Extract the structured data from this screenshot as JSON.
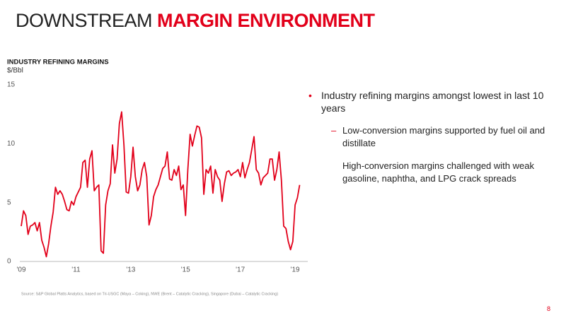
{
  "slide_title": {
    "light": "DOWNSTREAM",
    "bold": "MARGIN ENVIRONMENT"
  },
  "chart_data": {
    "type": "line",
    "title": "INDUSTRY REFINING MARGINS",
    "y_label": "$/Bbl",
    "categories": [
      "'09",
      null,
      null,
      null,
      null,
      null,
      null,
      null,
      null,
      null,
      null,
      null,
      null,
      null,
      null,
      null,
      null,
      null,
      null,
      null,
      null,
      null,
      null,
      null,
      "'11",
      null,
      null,
      null,
      null,
      null,
      null,
      null,
      null,
      null,
      null,
      null,
      null,
      null,
      null,
      null,
      null,
      null,
      null,
      null,
      null,
      null,
      null,
      null,
      "'13",
      null,
      null,
      null,
      null,
      null,
      null,
      null,
      null,
      null,
      null,
      null,
      null,
      null,
      null,
      null,
      null,
      null,
      null,
      null,
      null,
      null,
      null,
      null,
      "'15",
      null,
      null,
      null,
      null,
      null,
      null,
      null,
      null,
      null,
      null,
      null,
      null,
      null,
      null,
      null,
      null,
      null,
      null,
      null,
      null,
      null,
      null,
      null,
      "'17",
      null,
      null,
      null,
      null,
      null,
      null,
      null,
      null,
      null,
      null,
      null,
      null,
      null,
      null,
      null,
      null,
      null,
      null,
      null,
      null,
      null,
      null,
      null,
      "'19",
      null,
      null
    ],
    "series": [
      {
        "name": "Industry refining margins",
        "color": "#e2001a",
        "values": [
          3.0,
          4.3,
          3.9,
          2.3,
          3.0,
          3.1,
          3.3,
          2.6,
          3.3,
          1.8,
          1.2,
          0.4,
          1.5,
          3.0,
          4.2,
          6.3,
          5.7,
          6.0,
          5.7,
          5.1,
          4.4,
          4.3,
          5.1,
          4.8,
          5.5,
          5.9,
          6.3,
          8.4,
          8.6,
          6.3,
          8.7,
          9.4,
          6.0,
          6.3,
          6.5,
          0.9,
          0.7,
          4.8,
          6.0,
          6.6,
          9.9,
          7.5,
          8.7,
          11.7,
          12.7,
          9.9,
          5.9,
          5.8,
          7.2,
          9.7,
          7.2,
          6.0,
          6.5,
          7.8,
          8.4,
          7.2,
          3.1,
          3.9,
          5.5,
          6.1,
          6.5,
          7.2,
          7.9,
          8.1,
          9.3,
          7.0,
          6.9,
          7.8,
          7.3,
          8.1,
          6.1,
          6.5,
          3.9,
          7.8,
          10.8,
          9.8,
          10.7,
          11.5,
          11.4,
          10.5,
          5.7,
          7.8,
          7.5,
          8.1,
          5.8,
          7.8,
          7.2,
          6.9,
          5.1,
          6.6,
          7.6,
          7.7,
          7.3,
          7.5,
          7.6,
          7.8,
          7.2,
          8.4,
          7.1,
          7.8,
          8.4,
          9.5,
          10.6,
          7.8,
          7.5,
          6.5,
          7.1,
          7.3,
          7.5,
          8.7,
          8.7,
          6.9,
          7.8,
          9.3,
          6.9,
          3.0,
          2.8,
          1.7,
          1.0,
          1.7,
          4.8,
          5.4,
          6.5
        ]
      }
    ],
    "ylim": [
      0,
      15
    ],
    "yticks": [
      0,
      5,
      10,
      15
    ],
    "grid": false,
    "source": "Source: S&P Global Platts Analytics, based on Tri-USGC (Maya – Coking), NWE (Brent – Catalytic Cracking), Singapore (Dubai – Catalytic Cracking)"
  },
  "bullets": [
    {
      "text": "Industry refining margins amongst lowest in last 10 years",
      "subs": [
        "Low-conversion margins supported by fuel oil and distillate",
        "High-conversion margins challenged with weak gasoline, naphtha, and LPG crack spreads"
      ]
    }
  ],
  "page_number": "8"
}
